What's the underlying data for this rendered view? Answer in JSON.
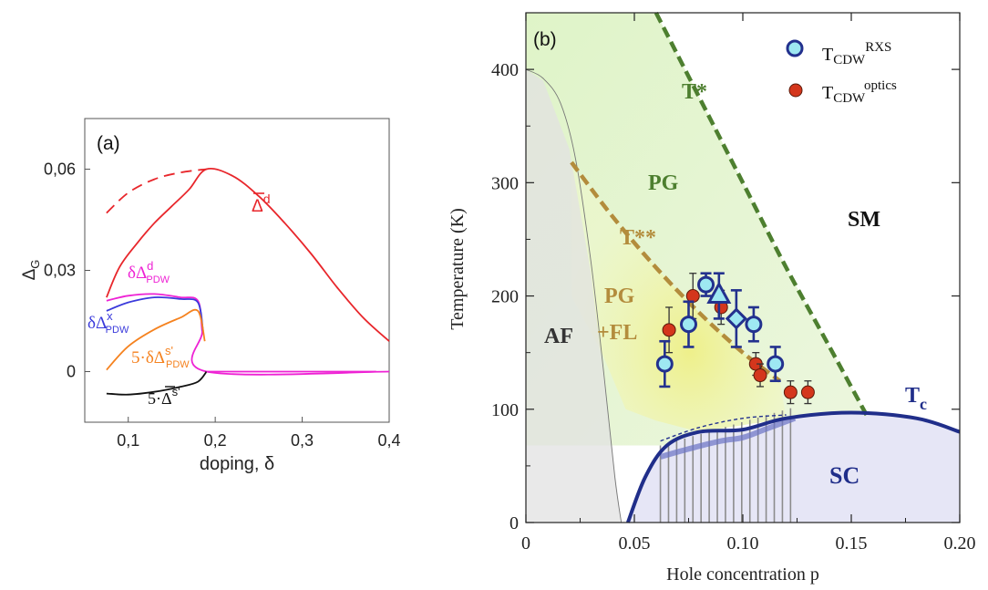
{
  "chart_data": [
    {
      "panel": "(a)",
      "type": "line",
      "xlabel": "doping, δ",
      "ylabel": "Δ",
      "ylabel_sub": "G",
      "xlim": [
        0.05,
        0.4
      ],
      "ylim": [
        -0.015,
        0.075
      ],
      "xticks": [
        {
          "v": 0.1,
          "label": "0,1"
        },
        {
          "v": 0.2,
          "label": "0,2"
        },
        {
          "v": 0.3,
          "label": "0,3"
        },
        {
          "v": 0.4,
          "label": "0,4"
        }
      ],
      "yticks": [
        {
          "v": 0,
          "label": "0"
        },
        {
          "v": 0.03,
          "label": "0,03"
        },
        {
          "v": 0.06,
          "label": "0,06"
        }
      ],
      "series": [
        {
          "name": "Δ̄d",
          "color": "#e8262b",
          "label_main": "Δ",
          "label_sup": "d",
          "x": [
            0.075,
            0.09,
            0.11,
            0.13,
            0.15,
            0.17,
            0.19,
            0.22,
            0.25,
            0.28,
            0.31,
            0.34,
            0.37,
            0.4
          ],
          "y": [
            0.022,
            0.031,
            0.038,
            0.044,
            0.049,
            0.054,
            0.06,
            0.058,
            0.052,
            0.044,
            0.035,
            0.025,
            0.016,
            0.009
          ]
        },
        {
          "name": "Δ̄d dashed",
          "color": "#e8262b",
          "dashed": true,
          "x": [
            0.075,
            0.1,
            0.13,
            0.16,
            0.19
          ],
          "y": [
            0.047,
            0.053,
            0.057,
            0.059,
            0.06
          ]
        },
        {
          "name": "δΔdPDW",
          "color": "#ee22d4",
          "label_main": "δΔ",
          "label_sup": "d",
          "label_sub": "PDW",
          "x": [
            0.075,
            0.1,
            0.13,
            0.16,
            0.18,
            0.185,
            0.19,
            0.4
          ],
          "y": [
            0.021,
            0.0225,
            0.023,
            0.022,
            0.021,
            0.012,
            0.0,
            0.0
          ]
        },
        {
          "name": "δΔxPDW",
          "color": "#3a3adb",
          "label_main": "δΔ",
          "label_sup": "x",
          "label_sub": "PDW",
          "x": [
            0.075,
            0.1,
            0.13,
            0.16,
            0.18,
            0.186
          ],
          "y": [
            0.018,
            0.0205,
            0.022,
            0.0215,
            0.0205,
            0.012
          ]
        },
        {
          "name": "5·δΔs'PDW",
          "color": "#f5821f",
          "label_main": "5·δΔ",
          "label_sup": "s'",
          "label_sub": "PDW",
          "x": [
            0.075,
            0.1,
            0.13,
            0.16,
            0.18,
            0.188
          ],
          "y": [
            0.0005,
            0.0075,
            0.0125,
            0.016,
            0.018,
            0.009
          ]
        },
        {
          "name": "5·Δ̄s'",
          "color": "#111111",
          "label_main": "5·Δ",
          "label_sup": "s'",
          "x": [
            0.075,
            0.1,
            0.13,
            0.16,
            0.18,
            0.19
          ],
          "y": [
            -0.0065,
            -0.0068,
            -0.006,
            -0.0045,
            -0.003,
            0.0
          ]
        },
        {
          "name": "zero",
          "color": "#ee22d4",
          "x": [
            0.19,
            0.385
          ],
          "y": [
            0.0,
            0.0
          ]
        }
      ]
    },
    {
      "panel": "(b)",
      "type": "scatter",
      "xlabel": "Hole concentration p",
      "ylabel": "Temperature (K)",
      "xlim": [
        0,
        0.2
      ],
      "ylim": [
        0,
        450
      ],
      "xticks": [
        {
          "v": 0,
          "label": "0"
        },
        {
          "v": 0.05,
          "label": "0.05"
        },
        {
          "v": 0.1,
          "label": "0.10"
        },
        {
          "v": 0.15,
          "label": "0.15"
        },
        {
          "v": 0.2,
          "label": "0.20"
        }
      ],
      "yticks": [
        {
          "v": 0,
          "label": "0"
        },
        {
          "v": 100,
          "label": "100"
        },
        {
          "v": 200,
          "label": "200"
        },
        {
          "v": 300,
          "label": "300"
        },
        {
          "v": 400,
          "label": "400"
        }
      ],
      "regions": [
        "T*",
        "T**",
        "PG",
        "SM",
        "PG",
        "+FL",
        "AF",
        "SC",
        "T",
        "c"
      ],
      "legend": [
        {
          "label": "T",
          "sub": "CDW",
          "sup": "RXS"
        },
        {
          "label": "T",
          "sub": "CDW",
          "sup": "optics"
        }
      ],
      "series": [
        {
          "name": "T_CDW RXS",
          "marker": "circle",
          "x": [
            0.064,
            0.075,
            0.083,
            0.089,
            0.097,
            0.105,
            0.115
          ],
          "y": [
            140,
            175,
            210,
            200,
            180,
            175,
            140
          ],
          "err": [
            20,
            20,
            10,
            20,
            25,
            15,
            15
          ]
        },
        {
          "name": "T_CDW optics",
          "marker": "dot",
          "x": [
            0.066,
            0.077,
            0.09,
            0.106,
            0.108,
            0.122,
            0.13
          ],
          "y": [
            170,
            200,
            190,
            140,
            130,
            115,
            115
          ],
          "err": [
            20,
            20,
            15,
            10,
            10,
            10,
            10
          ]
        },
        {
          "name": "T*",
          "color": "#4d7f2f",
          "dashed": true,
          "x": [
            0.06,
            0.08,
            0.1,
            0.12,
            0.14,
            0.157
          ],
          "y": [
            450,
            375,
            300,
            225,
            155,
            95
          ]
        },
        {
          "name": "T**",
          "color": "#b38c3c",
          "dashed": true,
          "x": [
            0.021,
            0.04,
            0.06,
            0.08,
            0.1,
            0.117
          ],
          "y": [
            318,
            270,
            225,
            185,
            150,
            125
          ]
        },
        {
          "name": "Tc",
          "color": "#202e8a",
          "x": [
            0.047,
            0.055,
            0.065,
            0.08,
            0.1,
            0.12,
            0.15,
            0.18,
            0.2
          ],
          "y": [
            0,
            40,
            68,
            80,
            82,
            92,
            97,
            92,
            80
          ]
        }
      ]
    }
  ]
}
